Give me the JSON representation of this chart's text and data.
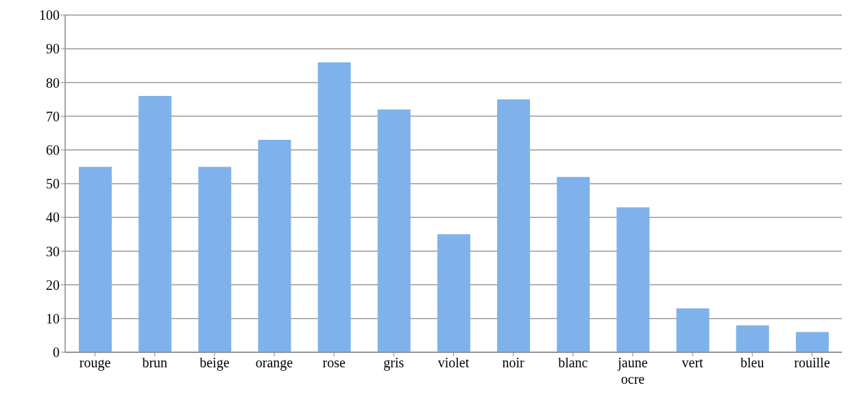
{
  "chart_data": {
    "type": "bar",
    "categories": [
      "rouge",
      "brun",
      "beige",
      "orange",
      "rose",
      "gris",
      "violet",
      "noir",
      "blanc",
      "jaune ocre",
      "vert",
      "bleu",
      "rouille"
    ],
    "values": [
      55,
      76,
      55,
      63,
      86,
      72,
      35,
      75,
      52,
      43,
      13,
      8,
      6
    ],
    "color": "#7fb2ea",
    "ylim": [
      0,
      100
    ],
    "yticks": [
      0,
      10,
      20,
      30,
      40,
      50,
      60,
      70,
      80,
      90,
      100
    ],
    "grid": "y"
  }
}
